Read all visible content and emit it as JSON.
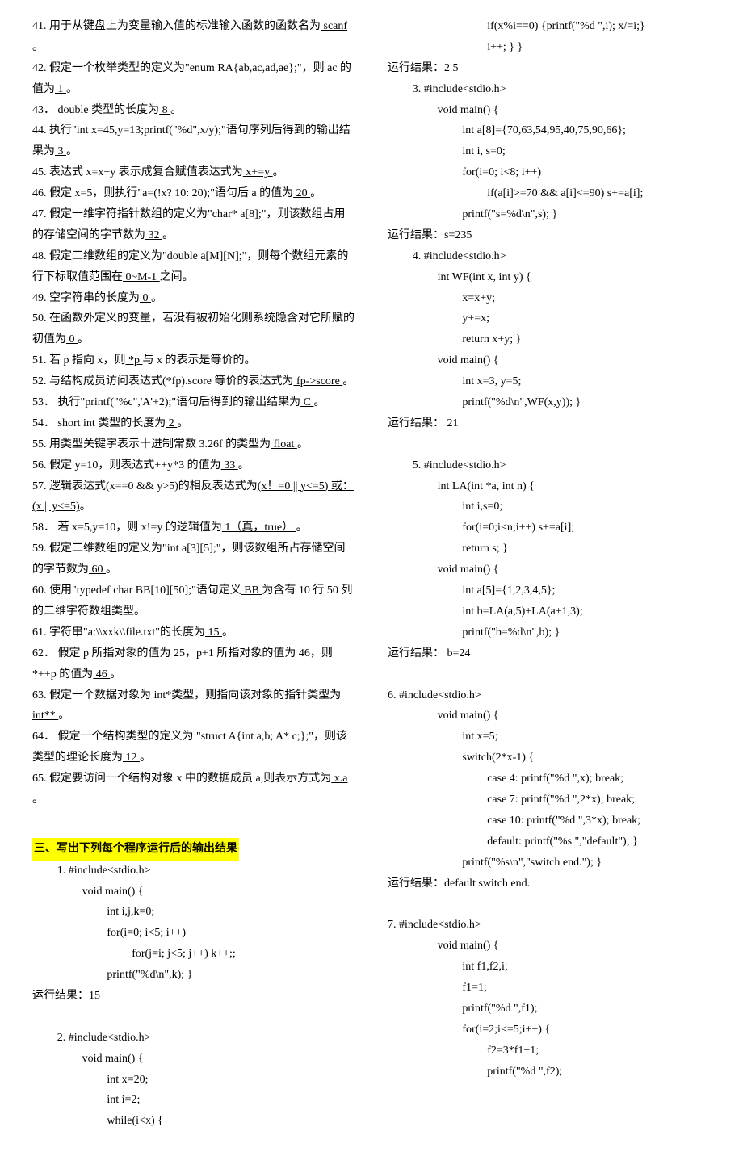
{
  "colors": {
    "text": "#000000",
    "bg": "#ffffff",
    "highlight": "#ffff00"
  },
  "typography": {
    "base_fontsize_pt": 10.5,
    "line_height": 1.85,
    "font_family": "SimSun"
  },
  "left": {
    "questions": [
      {
        "n": "41.",
        "pre": "用于从键盘上为变量输入值的标准输入函数的函数名为",
        "ans": " scanf ",
        "post": "。"
      },
      {
        "n": "42.",
        "pre": "假定一个枚举类型的定义为\"enum RA{ab,ac,ad,ae};\"，则 ac 的值为",
        "ans": " 1 ",
        "post": "。"
      },
      {
        "n": "43．",
        "pre": "double 类型的长度为",
        "ans": " 8 ",
        "post": "。"
      },
      {
        "n": "44.",
        "pre": "执行\"int x=45,y=13;printf(\"%d\",x/y);\"语句序列后得到的输出结果为",
        "ans": " 3 ",
        "post": "。"
      },
      {
        "n": "45.",
        "pre": "表达式 x=x+y 表示成复合赋值表达式为",
        "ans": " x+=y ",
        "post": "。"
      },
      {
        "n": "46.",
        "pre": "假定 x=5，则执行\"a=(!x? 10: 20);\"语句后 a 的值为",
        "ans": " 20 ",
        "post": "。"
      },
      {
        "n": "47.",
        "pre": "假定一维字符指针数组的定义为\"char* a[8];\"，则该数组占用的存储空间的字节数为",
        "ans": " 32 ",
        "post": "。"
      },
      {
        "n": "48.",
        "pre": "假定二维数组的定义为\"double a[M][N];\"，则每个数组元素的行下标取值范围在",
        "ans": " 0~M-1 ",
        "post": "之间。"
      },
      {
        "n": "49.",
        "pre": "空字符串的长度为",
        "ans": " 0 ",
        "post": "。"
      },
      {
        "n": "50.",
        "pre": "在函数外定义的变量，若没有被初始化则系统隐含对它所赋的初值为",
        "ans": " 0 ",
        "post": "。"
      },
      {
        "n": "51.",
        "pre": "若 p 指向 x，则",
        "ans": " *p ",
        "post": "与 x 的表示是等价的。"
      },
      {
        "n": "52.",
        "pre": "与结构成员访问表达式(*fp).score 等价的表达式为",
        "ans": " fp->score ",
        "post": "。"
      },
      {
        "n": "53．",
        "pre": "执行\"printf(\"%c\",'A'+2);\"语句后得到的输出结果为",
        "ans": " C ",
        "post": "。"
      },
      {
        "n": "54．",
        "pre": "short int 类型的长度为",
        "ans": " 2 ",
        "post": "。"
      },
      {
        "n": "55.",
        "pre": "用类型关键字表示十进制常数 3.26f 的类型为",
        "ans": " float ",
        "post": "。"
      },
      {
        "n": "56.",
        "pre": "假定 y=10，则表达式++y*3 的值为",
        "ans": " 33 ",
        "post": "。"
      },
      {
        "n": "57.",
        "pre": "逻辑表达式(x==0 && y>5)的相反表达式为",
        "ans": "(x！=0 || y<=5)  或：(x || y<=5)",
        "post": "。"
      },
      {
        "n": "58．",
        "pre": "若 x=5,y=10，则 x!=y 的逻辑值为",
        "ans": " 1（真，true） ",
        "post": "。"
      },
      {
        "n": "59.",
        "pre": "假定二维数组的定义为\"int a[3][5];\"，则该数组所占存储空间的字节数为",
        "ans": " 60 ",
        "post": "。"
      },
      {
        "n": "60.",
        "pre": "使用\"typedef char BB[10][50];\"语句定义",
        "ans": " BB ",
        "post": "为含有 10 行 50 列的二维字符数组类型。"
      },
      {
        "n": "61.",
        "pre": "字符串\"a:\\\\xxk\\\\file.txt\"的长度为",
        "ans": " 15 ",
        "post": "。"
      },
      {
        "n": "62．",
        "pre": "假定 p 所指对象的值为 25，p+1 所指对象的值为 46，则*++p 的值为",
        "ans": " 46 ",
        "post": "。"
      },
      {
        "n": "63.",
        "pre": "假定一个数据对象为 int*类型，则指向该对象的指针类型为",
        "ans": " int** ",
        "post": "。"
      },
      {
        "n": "64．",
        "pre": "假定一个结构类型的定义为 \"struct A{int a,b; A* c;};\"，则该类型的理论长度为",
        "ans": " 12 ",
        "post": "。"
      },
      {
        "n": "65.",
        "pre": "假定要访问一个结构对象 x 中的数据成员 a,则表示方式为",
        "ans": " x.a ",
        "post": "。"
      }
    ],
    "section_title": "三、写出下列每个程序运行后的输出结果",
    "prog1": {
      "label": "1. #include<stdio.h>",
      "lines": [
        {
          "lvl": 1,
          "t": "void main() {"
        },
        {
          "lvl": 2,
          "t": "int i,j,k=0;"
        },
        {
          "lvl": 2,
          "t": "for(i=0; i<5; i++)"
        },
        {
          "lvl": 3,
          "t": "for(j=i; j<5; j++) k++;;"
        },
        {
          "lvl": 2,
          "t": "printf(\"%d\\n\",k); }"
        }
      ],
      "result_label": "运行结果：",
      "result": "15"
    },
    "prog2": {
      "label": "2. #include<stdio.h>",
      "lines": [
        {
          "lvl": 1,
          "t": "void main() {"
        },
        {
          "lvl": 2,
          "t": "int x=20;"
        },
        {
          "lvl": 2,
          "t": "int i=2;"
        },
        {
          "lvl": 2,
          "t": "while(i<x) {"
        }
      ]
    }
  },
  "right": {
    "prog2_cont": {
      "lines": [
        {
          "lvl": 3,
          "t": "if(x%i==0) {printf(\"%d \",i); x/=i;}"
        },
        {
          "lvl": 3,
          "t": "i++; } }"
        }
      ],
      "result_label": "运行结果：",
      "result": "2     5"
    },
    "prog3": {
      "label": "3. #include<stdio.h>",
      "lines": [
        {
          "lvl": 1,
          "t": "void main() {"
        },
        {
          "lvl": 2,
          "t": "int a[8]={70,63,54,95,40,75,90,66};"
        },
        {
          "lvl": 2,
          "t": "int i, s=0;"
        },
        {
          "lvl": 2,
          "t": "for(i=0; i<8; i++)"
        },
        {
          "lvl": 3,
          "t": "if(a[i]>=70 && a[i]<=90) s+=a[i];"
        },
        {
          "lvl": 2,
          "t": "printf(\"s=%d\\n\",s); }"
        }
      ],
      "result_label": "运行结果：",
      "result": "s=235"
    },
    "prog4": {
      "label": "4. #include<stdio.h>",
      "lines": [
        {
          "lvl": 1,
          "t": "int WF(int x, int y) {"
        },
        {
          "lvl": 2,
          "t": "x=x+y;"
        },
        {
          "lvl": 2,
          "t": "y+=x;"
        },
        {
          "lvl": 2,
          "t": "return x+y; }"
        },
        {
          "lvl": 1,
          "t": "void main() {"
        },
        {
          "lvl": 2,
          "t": "int x=3, y=5;"
        },
        {
          "lvl": 2,
          "t": "printf(\"%d\\n\",WF(x,y)); }"
        }
      ],
      "result_label": "运行结果：",
      "result": " 21"
    },
    "prog5": {
      "label": "5. #include<stdio.h>",
      "lines": [
        {
          "lvl": 1,
          "t": "int LA(int *a, int n) {"
        },
        {
          "lvl": 2,
          "t": "int i,s=0;"
        },
        {
          "lvl": 2,
          "t": "for(i=0;i<n;i++) s+=a[i];"
        },
        {
          "lvl": 2,
          "t": "return s; }"
        },
        {
          "lvl": 1,
          "t": "void main() {"
        },
        {
          "lvl": 2,
          "t": "int a[5]={1,2,3,4,5};"
        },
        {
          "lvl": 2,
          "t": "int b=LA(a,5)+LA(a+1,3);"
        },
        {
          "lvl": 2,
          "t": "printf(\"b=%d\\n\",b); }"
        }
      ],
      "result_label": "运行结果：",
      "result": " b=24"
    },
    "prog6": {
      "label": "6. #include<stdio.h>",
      "lines": [
        {
          "lvl": 1,
          "t": "void main() {"
        },
        {
          "lvl": 2,
          "t": "int x=5;"
        },
        {
          "lvl": 2,
          "t": "switch(2*x-1) {"
        },
        {
          "lvl": 3,
          "t": "case 4: printf(\"%d \",x); break;"
        },
        {
          "lvl": 3,
          "t": "case 7: printf(\"%d \",2*x); break;"
        },
        {
          "lvl": 3,
          "t": "case 10: printf(\"%d \",3*x); break;"
        },
        {
          "lvl": 3,
          "t": "default: printf(\"%s \",\"default\");    }"
        },
        {
          "lvl": 2,
          "t": "printf(\"%s\\n\",\"switch end.\");    }"
        }
      ],
      "result_label": "运行结果：",
      "result": "default    switch end."
    },
    "prog7": {
      "label": "7. #include<stdio.h>",
      "lines": [
        {
          "lvl": 1,
          "t": "void main() {"
        },
        {
          "lvl": 2,
          "t": "int f1,f2,i;"
        },
        {
          "lvl": 2,
          "t": "f1=1;"
        },
        {
          "lvl": 2,
          "t": "printf(\"%d \",f1);"
        },
        {
          "lvl": 2,
          "t": "for(i=2;i<=5;i++) {"
        },
        {
          "lvl": 3,
          "t": "f2=3*f1+1;"
        },
        {
          "lvl": 3,
          "t": "printf(\"%d \",f2);"
        }
      ]
    }
  }
}
